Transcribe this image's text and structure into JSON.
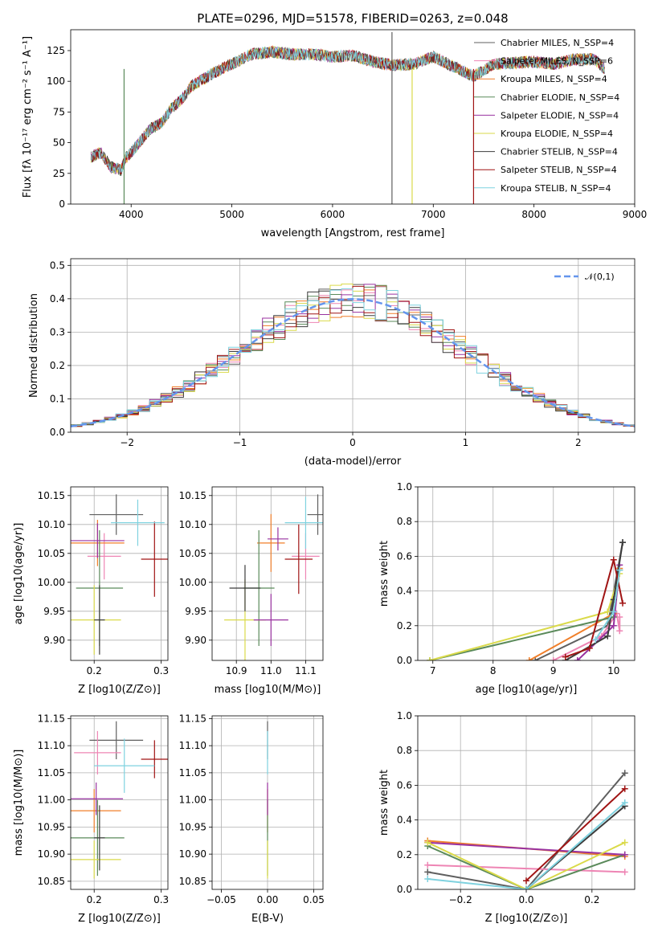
{
  "colors": [
    "#5f5f5f",
    "#ee85b4",
    "#f07f2a",
    "#5a8a5a",
    "#9932a0",
    "#dada4a",
    "#3c3c3c",
    "#a01414",
    "#7fd2df"
  ],
  "ssp_names": [
    "Chabrier MILES",
    "Salpeter MILES",
    "Kroupa MILES",
    "Chabrier ELODIE",
    "Salpeter ELODIE",
    "Kroupa ELODIE",
    "Chabrier STELIB",
    "Salpeter STELIB",
    "Kroupa STELIB"
  ],
  "chart_data": [
    {
      "type": "line",
      "title": "PLATE=0296, MJD=51578, FIBERID=0263, z=0.048",
      "xlabel": "wavelength [Angstrom, rest frame]",
      "ylabel": "Flux [fλ 10⁻¹⁷ erg cm⁻² s⁻¹ A⁻¹]",
      "xlim": [
        3400,
        9000
      ],
      "ylim": [
        0,
        142
      ],
      "xticks": [
        "4000",
        "5000",
        "6000",
        "7000",
        "8000",
        "9000"
      ],
      "yticks": [
        "0",
        "25",
        "50",
        "75",
        "100",
        "125"
      ],
      "legend": [
        "Chabrier MILES, N_SSP=4",
        "Salpeter MILES, N_SSP=6",
        "Kroupa MILES, N_SSP=4",
        "Chabrier ELODIE, N_SSP=4",
        "Salpeter ELODIE, N_SSP=4",
        "Kroupa ELODIE, N_SSP=4",
        "Chabrier STELIB, N_SSP=4",
        "Salpeter STELIB, N_SSP=4",
        "Kroupa STELIB, N_SSP=4"
      ],
      "legend_position": "top-right",
      "spectrum_anchors": {
        "x": [
          3600,
          3700,
          3800,
          3900,
          3950,
          4000,
          4100,
          4200,
          4300,
          4400,
          4500,
          4600,
          4800,
          5000,
          5200,
          5400,
          5600,
          5800,
          6000,
          6200,
          6400,
          6600,
          6800,
          7000,
          7200,
          7400,
          7600,
          7800,
          8000,
          8200,
          8400,
          8600,
          8700
        ],
        "y": [
          38,
          42,
          30,
          28,
          38,
          42,
          52,
          62,
          66,
          78,
          85,
          96,
          106,
          114,
          122,
          124,
          122,
          122,
          120,
          121,
          116,
          113,
          114,
          120,
          112,
          104,
          114,
          115,
          116,
          114,
          118,
          118,
          110
        ]
      }
    },
    {
      "type": "histogram",
      "xlabel": "(data-model)/error",
      "ylabel": "Normed distribution",
      "xlim": [
        -2.5,
        2.5
      ],
      "ylim": [
        0,
        0.52
      ],
      "xticks": [
        "−2",
        "−1",
        "0",
        "1",
        "2"
      ],
      "yticks": [
        "0.0",
        "0.1",
        "0.2",
        "0.3",
        "0.4",
        "0.5"
      ],
      "bin_width": 0.1,
      "reference_curve": "N(0,1)",
      "legend": [
        "𝒩(0,1)"
      ],
      "legend_position": "top-right"
    },
    {
      "type": "scatter",
      "xlabel": "Z [log10(Z/Z⊙)]",
      "ylabel": "age  [log10(age/yr)]",
      "xlim": [
        0.165,
        0.31
      ],
      "ylim": [
        9.865,
        10.165
      ],
      "xticks": [
        "0.2",
        "0.3"
      ],
      "yticks": [
        "9.90",
        "9.95",
        "10.00",
        "10.05",
        "10.10",
        "10.15"
      ],
      "points": [
        {
          "x": 0.233,
          "xerr": 0.04,
          "y": 10.117,
          "yerr": 0.035,
          "c": 0
        },
        {
          "x": 0.215,
          "xerr": 0.025,
          "y": 10.045,
          "yerr": 0.04,
          "c": 1
        },
        {
          "x": 0.205,
          "xerr": 0.04,
          "y": 10.068,
          "yerr": 0.04,
          "c": 2
        },
        {
          "x": 0.208,
          "xerr": 0.035,
          "y": 9.99,
          "yerr": 0.1,
          "c": 3
        },
        {
          "x": 0.205,
          "xerr": 0.04,
          "y": 10.072,
          "yerr": 0.03,
          "c": 4
        },
        {
          "x": 0.2,
          "xerr": 0.04,
          "y": 9.935,
          "yerr": 0.06,
          "c": 5
        },
        {
          "x": 0.208,
          "xerr": 0.008,
          "y": 9.935,
          "yerr": 0.06,
          "c": 6
        },
        {
          "x": 0.29,
          "xerr": 0.02,
          "y": 10.04,
          "yerr": 0.065,
          "c": 7
        },
        {
          "x": 0.265,
          "xerr": 0.04,
          "y": 10.103,
          "yerr": 0.04,
          "c": 8
        }
      ]
    },
    {
      "type": "scatter",
      "xlabel": "mass [log10(M/M⊙)]",
      "xlim": [
        10.83,
        11.15
      ],
      "ylim": [
        9.865,
        10.165
      ],
      "xticks": [
        "10.9",
        "11.0",
        "11.1"
      ],
      "yticks": [
        "9.90",
        "9.95",
        "10.00",
        "10.05",
        "10.10",
        "10.15"
      ],
      "points": [
        {
          "x": 11.135,
          "xerr": 0.03,
          "y": 10.117,
          "yerr": 0.035,
          "c": 0
        },
        {
          "x": 11.1,
          "xerr": 0.04,
          "y": 10.045,
          "yerr": 0.04,
          "c": 1
        },
        {
          "x": 11.0,
          "xerr": 0.04,
          "y": 10.068,
          "yerr": 0.05,
          "c": 2
        },
        {
          "x": 10.965,
          "xerr": 0.045,
          "y": 9.99,
          "yerr": 0.1,
          "c": 3
        },
        {
          "x": 11.02,
          "xerr": 0.03,
          "y": 10.075,
          "yerr": 0.02,
          "c": 4
        },
        {
          "x": 10.925,
          "xerr": 0.06,
          "y": 9.935,
          "yerr": 0.07,
          "c": 5
        },
        {
          "x": 10.925,
          "xerr": 0.045,
          "y": 9.99,
          "yerr": 0.04,
          "c": 6
        },
        {
          "x": 11.08,
          "xerr": 0.04,
          "y": 10.04,
          "yerr": 0.06,
          "c": 7
        },
        {
          "x": 11.1,
          "xerr": 0.06,
          "y": 10.103,
          "yerr": 0.045,
          "c": 8
        },
        {
          "x": 11.0,
          "xerr": 0.05,
          "y": 9.935,
          "yerr": 0.045,
          "c": 4
        }
      ]
    },
    {
      "type": "line",
      "xlabel": "age  [log10(age/yr)]",
      "ylabel": "mass weight",
      "xlim": [
        6.75,
        10.35
      ],
      "ylim": [
        0,
        1.0
      ],
      "xticks": [
        "7",
        "8",
        "9",
        "10"
      ],
      "yticks": [
        "0.0",
        "0.2",
        "0.4",
        "0.6",
        "0.8",
        "1.0"
      ],
      "series": [
        {
          "c": 0,
          "x": [
            8.7,
            9.9,
            10.15
          ],
          "y": [
            0.0,
            0.2,
            0.68
          ]
        },
        {
          "c": 1,
          "x": [
            9.0,
            9.8,
            10.05,
            10.1,
            10.1
          ],
          "y": [
            0.0,
            0.14,
            0.27,
            0.17,
            0.25
          ]
        },
        {
          "c": 2,
          "x": [
            8.6,
            10.0,
            10.1
          ],
          "y": [
            0.0,
            0.27,
            0.53
          ]
        },
        {
          "c": 3,
          "x": [
            6.95,
            10.0,
            10.1
          ],
          "y": [
            0.0,
            0.25,
            0.52
          ]
        },
        {
          "c": 4,
          "x": [
            9.4,
            10.0,
            10.1
          ],
          "y": [
            0.0,
            0.2,
            0.55
          ]
        },
        {
          "c": 5,
          "x": [
            6.95,
            9.9,
            10.1
          ],
          "y": [
            0.0,
            0.28,
            0.5
          ]
        },
        {
          "c": 6,
          "x": [
            9.2,
            9.9,
            10.0,
            10.15
          ],
          "y": [
            0.0,
            0.14,
            0.35,
            0.68
          ]
        },
        {
          "c": 7,
          "x": [
            9.2,
            9.6,
            10.0,
            10.15
          ],
          "y": [
            0.02,
            0.07,
            0.58,
            0.33
          ]
        },
        {
          "c": 8,
          "x": [
            9.7,
            10.0,
            10.1
          ],
          "y": [
            0.12,
            0.28,
            0.52
          ]
        }
      ]
    },
    {
      "type": "scatter",
      "xlabel": "Z [log10(Z/Z⊙)]",
      "ylabel": "mass [log10(M/M⊙)]",
      "xlim": [
        0.165,
        0.31
      ],
      "ylim": [
        10.835,
        11.155
      ],
      "xticks": [
        "0.2",
        "0.3"
      ],
      "yticks": [
        "10.85",
        "10.90",
        "10.95",
        "11.00",
        "11.05",
        "11.10",
        "11.15"
      ],
      "points": [
        {
          "x": 0.233,
          "xerr": 0.04,
          "y": 11.11,
          "yerr": 0.035,
          "c": 0
        },
        {
          "x": 0.205,
          "xerr": 0.035,
          "y": 11.087,
          "yerr": 0.04,
          "c": 1
        },
        {
          "x": 0.2,
          "xerr": 0.04,
          "y": 10.98,
          "yerr": 0.04,
          "c": 2
        },
        {
          "x": 0.205,
          "xerr": 0.04,
          "y": 10.93,
          "yerr": 0.07,
          "c": 3
        },
        {
          "x": 0.203,
          "xerr": 0.04,
          "y": 11.002,
          "yerr": 0.03,
          "c": 4
        },
        {
          "x": 0.2,
          "xerr": 0.04,
          "y": 10.89,
          "yerr": 0.035,
          "c": 5
        },
        {
          "x": 0.208,
          "xerr": 0.008,
          "y": 10.93,
          "yerr": 0.06,
          "c": 6
        },
        {
          "x": 0.29,
          "xerr": 0.02,
          "y": 11.075,
          "yerr": 0.035,
          "c": 7
        },
        {
          "x": 0.245,
          "xerr": 0.045,
          "y": 11.063,
          "yerr": 0.05,
          "c": 8
        }
      ]
    },
    {
      "type": "scatter",
      "xlabel": "E(B-V)",
      "xlim": [
        -0.06,
        0.06
      ],
      "ylim": [
        10.835,
        11.155
      ],
      "xticks": [
        "−0.05",
        "0.00",
        "0.05"
      ],
      "yticks": [
        "10.85",
        "10.90",
        "10.95",
        "11.00",
        "11.05",
        "11.10",
        "11.15"
      ],
      "points": [
        {
          "x": 0,
          "y": 11.11,
          "yerr": 0.035,
          "c": 0
        },
        {
          "x": 0,
          "y": 11.087,
          "yerr": 0.04,
          "c": 8
        },
        {
          "x": 0,
          "y": 10.98,
          "yerr": 0.04,
          "c": 2
        },
        {
          "x": 0,
          "y": 10.93,
          "yerr": 0.07,
          "c": 3
        },
        {
          "x": 0,
          "y": 11.002,
          "yerr": 0.03,
          "c": 4
        },
        {
          "x": 0,
          "y": 10.89,
          "yerr": 0.035,
          "c": 5
        }
      ]
    },
    {
      "type": "line",
      "xlabel": "Z [log10(Z/Z⊙)]",
      "ylabel": "mass weight",
      "xlim": [
        -0.33,
        0.33
      ],
      "ylim": [
        0,
        1.0
      ],
      "xticks": [
        "−0.2",
        "0.0",
        "0.2"
      ],
      "yticks": [
        "0.0",
        "0.2",
        "0.4",
        "0.6",
        "0.8",
        "1.0"
      ],
      "series": [
        {
          "c": 0,
          "x": [
            -0.3,
            0.0,
            0.3
          ],
          "y": [
            0.1,
            0.0,
            0.67
          ]
        },
        {
          "c": 1,
          "x": [
            -0.3,
            0.3
          ],
          "y": [
            0.14,
            0.1
          ]
        },
        {
          "c": 2,
          "x": [
            -0.3,
            0.3
          ],
          "y": [
            0.28,
            0.19
          ]
        },
        {
          "c": 3,
          "x": [
            -0.3,
            0.0,
            0.3
          ],
          "y": [
            0.25,
            0.0,
            0.2
          ]
        },
        {
          "c": 4,
          "x": [
            -0.3,
            0.3
          ],
          "y": [
            0.27,
            0.2
          ]
        },
        {
          "c": 5,
          "x": [
            -0.3,
            0.0,
            0.3
          ],
          "y": [
            0.27,
            0.0,
            0.27
          ]
        },
        {
          "c": 6,
          "x": [
            0.0,
            0.3
          ],
          "y": [
            0.0,
            0.48
          ]
        },
        {
          "c": 7,
          "x": [
            0.0,
            0.3
          ],
          "y": [
            0.05,
            0.58
          ]
        },
        {
          "c": 8,
          "x": [
            -0.3,
            0.0,
            0.3
          ],
          "y": [
            0.06,
            0.0,
            0.5
          ]
        }
      ]
    }
  ]
}
